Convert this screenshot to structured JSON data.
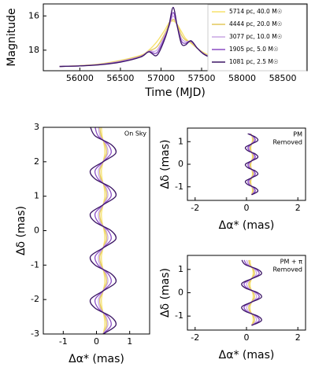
{
  "chart_data": [
    {
      "type": "line",
      "xlabel": "Time (MJD)",
      "ylabel": "Magnitude",
      "x": [
        55750,
        56000,
        56250,
        56500,
        56750,
        56850,
        56950,
        57050,
        57100,
        57150,
        57200,
        57250,
        57300,
        57370,
        57450,
        57550,
        57750,
        58000,
        58250,
        58650
      ],
      "xlim": [
        55550,
        58800
      ],
      "xticks": [
        56000,
        56500,
        57000,
        57500,
        58000,
        58500
      ],
      "ylim": [
        19.2,
        15.3
      ],
      "yticks": [
        16,
        18
      ],
      "legend": "upper right",
      "series": [
        {
          "name": "5714 pc, 40.0 M☉",
          "color": "#f7e26b",
          "values": [
            18.95,
            18.9,
            18.8,
            18.6,
            18.3,
            18.0,
            17.5,
            16.8,
            16.4,
            16.3,
            16.5,
            16.9,
            17.3,
            17.6,
            17.9,
            18.2,
            18.6,
            18.78,
            18.87,
            18.92
          ]
        },
        {
          "name": "4444 pc, 20.0 M☉",
          "color": "#e3c75a",
          "values": [
            18.95,
            18.9,
            18.82,
            18.62,
            18.33,
            18.05,
            17.8,
            17.0,
            16.5,
            16.2,
            16.5,
            17.1,
            17.4,
            17.55,
            17.9,
            18.25,
            18.62,
            18.79,
            18.88,
            18.93
          ]
        },
        {
          "name": "3077 pc, 10.0 M☉",
          "color": "#c9a6e4",
          "values": [
            18.95,
            18.91,
            18.83,
            18.65,
            18.36,
            18.06,
            18.0,
            17.1,
            16.6,
            16.0,
            16.6,
            17.3,
            17.5,
            17.5,
            17.9,
            18.27,
            18.63,
            18.8,
            18.88,
            18.93
          ]
        },
        {
          "name": "1905 pc, 5.0 M☉",
          "color": "#8a4cc4",
          "values": [
            18.95,
            18.92,
            18.84,
            18.68,
            18.38,
            18.08,
            18.15,
            17.2,
            16.55,
            15.8,
            16.6,
            17.45,
            17.6,
            17.48,
            17.9,
            18.28,
            18.64,
            18.8,
            18.88,
            18.93
          ]
        },
        {
          "name": "1081 pc, 2.5 M☉",
          "color": "#3b1565",
          "values": [
            18.95,
            18.92,
            18.85,
            18.7,
            18.4,
            18.1,
            18.3,
            17.3,
            16.5,
            15.5,
            16.6,
            17.6,
            17.7,
            17.45,
            17.9,
            18.3,
            18.65,
            18.8,
            18.88,
            18.93
          ]
        }
      ]
    },
    {
      "type": "track",
      "xlabel": "Δα* (mas)",
      "ylabel": "Δδ (mas)",
      "annotation": [
        "On Sky"
      ],
      "xlim": [
        -1.6,
        1.6
      ],
      "xticks": [
        -1,
        0,
        1
      ],
      "ylim": [
        -3,
        3
      ],
      "yticks": [
        -3,
        -2,
        -1,
        0,
        1,
        2,
        3
      ],
      "y": [
        -3,
        -2.75,
        -2.5,
        -2.25,
        -2,
        -1.75,
        -1.5,
        -1.25,
        -1,
        -0.75,
        -0.5,
        -0.25,
        0,
        0.25,
        0.5,
        0.75,
        1,
        1.25,
        1.5,
        1.75,
        2,
        2.25,
        2.5,
        2.75,
        3
      ],
      "series": [
        {
          "color": "#f7e26b",
          "values": [
            0.2,
            0.25,
            0.23,
            0.17,
            0.15,
            0.2,
            0.25,
            0.23,
            0.17,
            0.15,
            0.2,
            0.25,
            0.23,
            0.17,
            0.15,
            0.2,
            0.25,
            0.23,
            0.17,
            0.15,
            0.2,
            0.25,
            0.23,
            0.17,
            0.15
          ]
        },
        {
          "color": "#e3c75a",
          "values": [
            0.2,
            0.3,
            0.26,
            0.14,
            0.1,
            0.2,
            0.3,
            0.26,
            0.14,
            0.1,
            0.2,
            0.3,
            0.26,
            0.14,
            0.1,
            0.2,
            0.3,
            0.26,
            0.14,
            0.1,
            0.2,
            0.3,
            0.26,
            0.14,
            0.1
          ]
        },
        {
          "color": "#c9a6e4",
          "values": [
            0.2,
            0.34,
            0.29,
            0.11,
            0.06,
            0.2,
            0.34,
            0.29,
            0.11,
            0.06,
            0.2,
            0.34,
            0.29,
            0.11,
            0.06,
            0.2,
            0.34,
            0.29,
            0.11,
            0.06,
            0.2,
            0.34,
            0.29,
            0.11,
            0.06
          ]
        },
        {
          "color": "#8a4cc4",
          "values": [
            0.2,
            0.44,
            0.35,
            0.05,
            -0.04,
            0.2,
            0.44,
            0.35,
            0.05,
            -0.04,
            0.2,
            0.44,
            0.35,
            0.05,
            -0.04,
            0.2,
            0.44,
            0.35,
            0.05,
            -0.04,
            0.2,
            0.44,
            0.35,
            0.05,
            -0.04
          ]
        },
        {
          "color": "#3b1565",
          "values": [
            0.2,
            0.58,
            0.44,
            -0.04,
            -0.18,
            0.2,
            0.58,
            0.44,
            -0.04,
            -0.18,
            0.2,
            0.58,
            0.44,
            -0.04,
            -0.18,
            0.2,
            0.58,
            0.44,
            -0.04,
            -0.18,
            0.2,
            0.58,
            0.44,
            -0.04,
            -0.18
          ]
        }
      ]
    },
    {
      "type": "track",
      "xlabel": "Δα* (mas)",
      "ylabel": "Δδ (mas)",
      "annotation": [
        "PM",
        "Removed"
      ],
      "xlim": [
        -2.3,
        2.3
      ],
      "xticks": [
        -2,
        0,
        2
      ],
      "ylim": [
        -1.6,
        1.6
      ],
      "yticks": [
        -1,
        0,
        1
      ],
      "y": [
        -1.35,
        -1.2,
        -1.05,
        -0.9,
        -0.75,
        -0.6,
        -0.45,
        -0.3,
        -0.15,
        0,
        0.15,
        0.3,
        0.45,
        0.6,
        0.75,
        0.9,
        1.05,
        1.2,
        1.35
      ],
      "series": [
        {
          "color": "#f7e26b",
          "values": [
            0.2,
            0.23,
            0.22,
            0.18,
            0.17,
            0.2,
            0.23,
            0.22,
            0.18,
            0.17,
            0.2,
            0.23,
            0.22,
            0.18,
            0.17,
            0.2,
            0.23,
            0.22,
            0.18
          ]
        },
        {
          "color": "#e3c75a",
          "values": [
            0.2,
            0.26,
            0.24,
            0.16,
            0.14,
            0.2,
            0.26,
            0.24,
            0.16,
            0.14,
            0.2,
            0.26,
            0.24,
            0.16,
            0.14,
            0.2,
            0.26,
            0.24,
            0.16
          ]
        },
        {
          "color": "#c9a6e4",
          "values": [
            0.2,
            0.3,
            0.26,
            0.14,
            0.1,
            0.2,
            0.3,
            0.26,
            0.14,
            0.1,
            0.2,
            0.3,
            0.26,
            0.14,
            0.1,
            0.2,
            0.3,
            0.26,
            0.14
          ]
        },
        {
          "color": "#8a4cc4",
          "values": [
            0.2,
            0.34,
            0.29,
            0.11,
            0.06,
            0.2,
            0.34,
            0.29,
            0.11,
            0.06,
            0.2,
            0.34,
            0.29,
            0.11,
            0.06,
            0.2,
            0.34,
            0.29,
            0.11
          ]
        },
        {
          "color": "#3b1565",
          "values": [
            0.2,
            0.44,
            0.35,
            0.05,
            -0.04,
            0.2,
            0.44,
            0.35,
            0.05,
            -0.04,
            0.2,
            0.44,
            0.35,
            0.05,
            -0.04,
            0.2,
            0.44,
            0.35,
            0.05
          ]
        }
      ]
    },
    {
      "type": "track",
      "xlabel": "Δα* (mas)",
      "ylabel": "Δδ (mas)",
      "annotation": [
        "PM + π",
        "Removed"
      ],
      "xlim": [
        -2.3,
        2.3
      ],
      "xticks": [
        -2,
        0,
        2
      ],
      "ylim": [
        -1.6,
        1.6
      ],
      "yticks": [
        -1,
        0,
        1
      ],
      "y": [
        -1.4,
        -1.2,
        -1,
        -0.8,
        -0.6,
        -0.4,
        -0.2,
        0,
        0.2,
        0.4,
        0.6,
        0.8,
        1,
        1.2,
        1.4
      ],
      "series": [
        {
          "color": "#f7e26b",
          "values": [
            0.2,
            0.26,
            0.24,
            0.16,
            0.14,
            0.2,
            0.26,
            0.24,
            0.16,
            0.14,
            0.2,
            0.26,
            0.24,
            0.16,
            0.14
          ]
        },
        {
          "color": "#e3c75a",
          "values": [
            0.2,
            0.31,
            0.27,
            0.13,
            0.09,
            0.2,
            0.31,
            0.27,
            0.13,
            0.09,
            0.2,
            0.31,
            0.27,
            0.13,
            0.09
          ]
        },
        {
          "color": "#c9a6e4",
          "values": [
            0.2,
            0.39,
            0.32,
            0.08,
            0.01,
            0.2,
            0.39,
            0.32,
            0.08,
            0.01,
            0.2,
            0.39,
            0.32,
            0.08,
            0.01
          ]
        },
        {
          "color": "#8a4cc4",
          "values": [
            0.2,
            0.49,
            0.38,
            0.02,
            -0.09,
            0.2,
            0.49,
            0.38,
            0.02,
            -0.09,
            0.2,
            0.49,
            0.38,
            0.02,
            -0.09
          ]
        },
        {
          "color": "#3b1565",
          "values": [
            0.2,
            0.58,
            0.44,
            -0.04,
            -0.18,
            0.2,
            0.58,
            0.44,
            -0.04,
            -0.18,
            0.2,
            0.58,
            0.44,
            -0.04,
            -0.18
          ]
        }
      ]
    }
  ]
}
